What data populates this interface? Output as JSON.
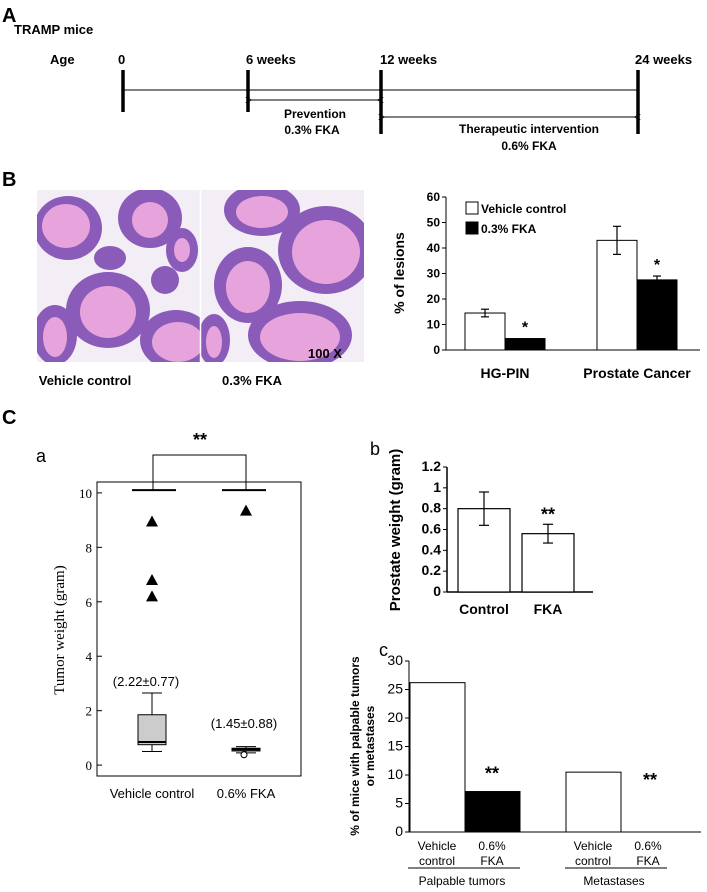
{
  "panelA": {
    "label": "A",
    "mouse": "TRAMP mice",
    "age_label": "Age",
    "timepoints": [
      "0",
      "6 weeks",
      "12 weeks",
      "24 weeks"
    ],
    "prevention": [
      "Prevention",
      "0.3% FKA"
    ],
    "therapeutic": [
      "Therapeutic intervention",
      "0.6% FKA"
    ]
  },
  "panelB": {
    "label": "B",
    "images": {
      "left_caption": "Vehicle control",
      "right_caption": "0.3% FKA",
      "magnification": "100 X",
      "colors": {
        "tissue": "#8a5bb8",
        "lumen": "#e7a3dc",
        "stroma": "#f3eef6"
      }
    }
  },
  "panelC": {
    "label": "C",
    "a_label": "a",
    "b_label": "b",
    "c_label": "c",
    "sig_a": "**",
    "annotation_vehicle": "(2.22±0.77)",
    "annotation_fka": "(1.45±0.88)",
    "sig_b": "**",
    "sig_c_palpable": "**",
    "sig_c_metastases": "**",
    "c_xlabels": [
      "Vehicle",
      "control",
      "0.6%",
      "FKA"
    ],
    "c_groups": [
      "Palpable tumors",
      "Metastases"
    ],
    "c_ylabel": [
      "% of mice with palpable tumors",
      "or metastases"
    ]
  },
  "chart_data": [
    {
      "id": "B-bar",
      "type": "bar",
      "categories": [
        "HG-PIN",
        "Prostate Cancer"
      ],
      "series": [
        {
          "name": "Vehicle control",
          "values": [
            14.5,
            43
          ],
          "errors": [
            1.5,
            5.5
          ],
          "color": "#ffffff"
        },
        {
          "name": "0.3% FKA",
          "values": [
            4.5,
            27.5
          ],
          "errors": [
            0,
            1.5
          ],
          "color": "#000000"
        }
      ],
      "significance": [
        "*",
        "*"
      ],
      "ylabel": "% of lesions",
      "ylim": [
        0,
        60
      ],
      "yticks": [
        "0",
        "10",
        "20",
        "30",
        "40",
        "50",
        "60"
      ],
      "legend": "top-left"
    },
    {
      "id": "C-a-box",
      "type": "box",
      "categories": [
        "Vehicle control",
        "0.6% FKA"
      ],
      "boxes": [
        {
          "whisker_low": 0.5,
          "q1": 0.75,
          "median": 0.85,
          "q3": 1.85,
          "whisker_high": 2.65,
          "outliers": [
            6.2,
            6.8,
            8.95
          ],
          "fill": "#cccccc"
        },
        {
          "whisker_low": 0.45,
          "q1": 0.52,
          "median": 0.58,
          "q3": 0.62,
          "whisker_high": 0.68,
          "low_point": 0.38,
          "outliers": [
            9.35
          ],
          "fill": "#cccccc"
        }
      ],
      "ylabel": "Tumor weight (gram)",
      "ylim": [
        -0.4,
        10.4
      ],
      "yticks": [
        "0",
        "2",
        "4",
        "6",
        "8",
        "10"
      ]
    },
    {
      "id": "C-b-bar",
      "type": "bar",
      "categories": [
        "Control",
        "FKA"
      ],
      "values": [
        0.8,
        0.56
      ],
      "errors": [
        0.16,
        0.09
      ],
      "ylabel": "Prostate weight (gram)",
      "ylim": [
        0,
        1.2
      ],
      "yticks": [
        "0",
        "0.2",
        "0.4",
        "0.6",
        "0.8",
        "1",
        "1.2"
      ]
    },
    {
      "id": "C-c-bar",
      "type": "bar",
      "categories": [
        "Vehicle control",
        "0.6% FKA",
        "Vehicle control",
        "0.6% FKA"
      ],
      "values": [
        26.2,
        7.1,
        10.5,
        0
      ],
      "colors": [
        "#ffffff",
        "#000000",
        "#ffffff",
        "#000000"
      ],
      "ylim": [
        0,
        30
      ],
      "yticks": [
        "0",
        "5",
        "10",
        "15",
        "20",
        "25",
        "30"
      ]
    }
  ]
}
